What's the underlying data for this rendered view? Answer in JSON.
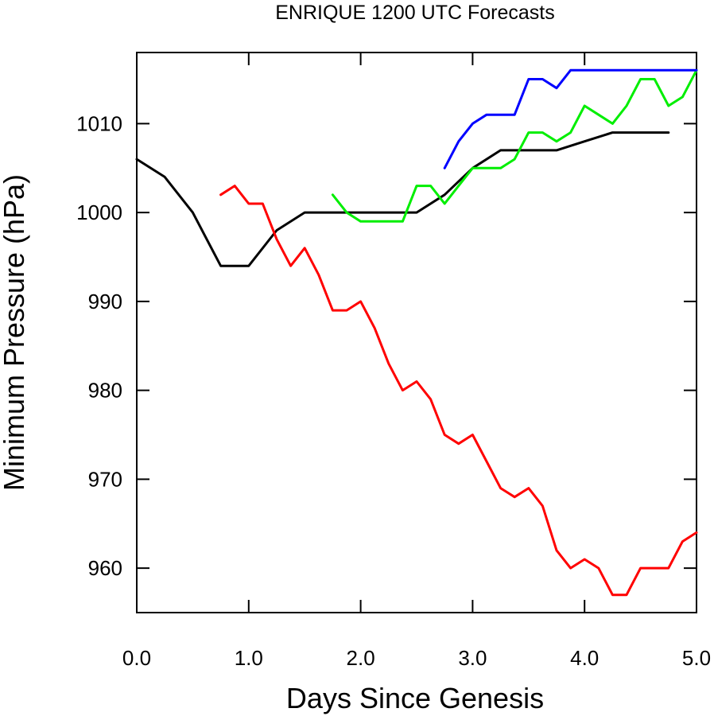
{
  "chart_data": {
    "type": "line",
    "title": "ENRIQUE 1200 UTC Forecasts",
    "xlabel": "Days Since Genesis",
    "ylabel": "Minimum Pressure (hPa)",
    "xlim": [
      0.0,
      5.0
    ],
    "ylim": [
      955,
      1018
    ],
    "xticks": [
      0.0,
      1.0,
      2.0,
      3.0,
      4.0,
      5.0
    ],
    "xtick_labels": [
      "0.0",
      "1.0",
      "2.0",
      "3.0",
      "4.0",
      "5.0"
    ],
    "yticks": [
      960,
      970,
      980,
      990,
      1000,
      1010
    ],
    "ytick_labels": [
      "960",
      "970",
      "980",
      "990",
      "1000",
      "1010"
    ],
    "grid": false,
    "series": [
      {
        "color": "#000000",
        "x": [
          0.0,
          0.25,
          0.5,
          0.75,
          1.0,
          1.25,
          1.5,
          1.75,
          2.0,
          2.25,
          2.5,
          2.75,
          3.0,
          3.25,
          3.5,
          3.75,
          4.0,
          4.25,
          4.5,
          4.75
        ],
        "y": [
          1006,
          1004,
          1000,
          994,
          994,
          998,
          1000,
          1000,
          1000,
          1000,
          1000,
          1002,
          1005,
          1007,
          1007,
          1007,
          1008,
          1009,
          1009,
          1009
        ]
      },
      {
        "color": "#ff0000",
        "x": [
          0.75,
          0.875,
          1.0,
          1.125,
          1.25,
          1.375,
          1.5,
          1.625,
          1.75,
          1.875,
          2.0,
          2.125,
          2.25,
          2.375,
          2.5,
          2.625,
          2.75,
          2.875,
          3.0,
          3.125,
          3.25,
          3.375,
          3.5,
          3.625,
          3.75,
          3.875,
          4.0,
          4.125,
          4.25,
          4.375,
          4.5,
          4.625,
          4.75,
          4.875,
          5.0
        ],
        "y": [
          1002,
          1003,
          1001,
          1001,
          997,
          994,
          996,
          993,
          989,
          989,
          990,
          987,
          983,
          980,
          981,
          979,
          975,
          974,
          975,
          972,
          969,
          968,
          969,
          967,
          962,
          960,
          961,
          960,
          957,
          957,
          960,
          960,
          960,
          963,
          964
        ]
      },
      {
        "color": "#00ee00",
        "x": [
          1.75,
          1.875,
          2.0,
          2.125,
          2.25,
          2.375,
          2.5,
          2.625,
          2.75,
          2.875,
          3.0,
          3.125,
          3.25,
          3.375,
          3.5,
          3.625,
          3.75,
          3.875,
          4.0,
          4.125,
          4.25,
          4.375,
          4.5,
          4.625,
          4.75,
          4.875,
          5.0
        ],
        "y": [
          1002,
          1000,
          999,
          999,
          999,
          999,
          1003,
          1003,
          1001,
          1003,
          1005,
          1005,
          1005,
          1006,
          1009,
          1009,
          1008,
          1009,
          1012,
          1011,
          1010,
          1012,
          1015,
          1015,
          1012,
          1013,
          1016
        ]
      },
      {
        "color": "#0000ff",
        "x": [
          2.75,
          2.875,
          3.0,
          3.125,
          3.25,
          3.375,
          3.5,
          3.625,
          3.75,
          3.875,
          4.0,
          4.125,
          4.25,
          4.375,
          4.5,
          4.625,
          4.75,
          4.875,
          5.0
        ],
        "y": [
          1005,
          1008,
          1010,
          1011,
          1011,
          1011,
          1015,
          1015,
          1014,
          1016,
          1016,
          1016,
          1016,
          1016,
          1016,
          1016,
          1016,
          1016,
          1016
        ]
      }
    ]
  }
}
